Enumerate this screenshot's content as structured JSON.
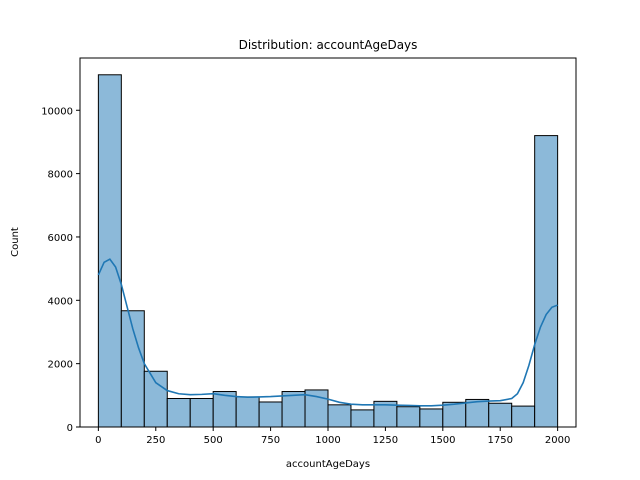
{
  "chart_data": {
    "type": "bar",
    "title": "Distribution: accountAgeDays",
    "xlabel": "accountAgeDays",
    "ylabel": "Count",
    "xlim": [
      -80,
      2080
    ],
    "ylim": [
      0,
      11650
    ],
    "xticks": [
      0,
      250,
      500,
      750,
      1000,
      1250,
      1500,
      1750,
      2000
    ],
    "yticks": [
      0,
      2000,
      4000,
      6000,
      8000,
      10000
    ],
    "grid": false,
    "bar_color": "#8cb9d9",
    "edge_color": "#000000",
    "kde_color": "#1f77b4",
    "bins": [
      {
        "x0": 0,
        "x1": 100,
        "count": 11120
      },
      {
        "x0": 100,
        "x1": 200,
        "count": 3670
      },
      {
        "x0": 200,
        "x1": 300,
        "count": 1760
      },
      {
        "x0": 300,
        "x1": 400,
        "count": 900
      },
      {
        "x0": 400,
        "x1": 500,
        "count": 900
      },
      {
        "x0": 500,
        "x1": 600,
        "count": 1120
      },
      {
        "x0": 600,
        "x1": 700,
        "count": 950
      },
      {
        "x0": 700,
        "x1": 800,
        "count": 790
      },
      {
        "x0": 800,
        "x1": 900,
        "count": 1120
      },
      {
        "x0": 900,
        "x1": 1000,
        "count": 1170
      },
      {
        "x0": 1000,
        "x1": 1100,
        "count": 700
      },
      {
        "x0": 1100,
        "x1": 1200,
        "count": 540
      },
      {
        "x0": 1200,
        "x1": 1300,
        "count": 810
      },
      {
        "x0": 1300,
        "x1": 1400,
        "count": 640
      },
      {
        "x0": 1400,
        "x1": 1500,
        "count": 570
      },
      {
        "x0": 1500,
        "x1": 1600,
        "count": 780
      },
      {
        "x0": 1600,
        "x1": 1700,
        "count": 870
      },
      {
        "x0": 1700,
        "x1": 1800,
        "count": 750
      },
      {
        "x0": 1800,
        "x1": 1900,
        "count": 660
      },
      {
        "x0": 1900,
        "x1": 2000,
        "count": 9200
      }
    ],
    "kde": {
      "x": [
        0,
        25,
        50,
        75,
        100,
        125,
        150,
        175,
        200,
        250,
        300,
        350,
        400,
        450,
        500,
        550,
        600,
        650,
        700,
        750,
        800,
        850,
        900,
        950,
        1000,
        1050,
        1100,
        1150,
        1200,
        1250,
        1300,
        1350,
        1400,
        1450,
        1500,
        1550,
        1600,
        1650,
        1700,
        1750,
        1800,
        1825,
        1850,
        1875,
        1900,
        1925,
        1950,
        1975,
        2000
      ],
      "y": [
        4800,
        5200,
        5300,
        5050,
        4500,
        3800,
        3100,
        2500,
        2000,
        1400,
        1150,
        1050,
        1020,
        1030,
        1050,
        1000,
        960,
        940,
        950,
        960,
        980,
        1000,
        1020,
        960,
        880,
        780,
        720,
        700,
        700,
        700,
        690,
        680,
        670,
        670,
        690,
        720,
        760,
        800,
        820,
        830,
        900,
        1050,
        1400,
        1950,
        2600,
        3150,
        3550,
        3780,
        3850
      ]
    }
  }
}
